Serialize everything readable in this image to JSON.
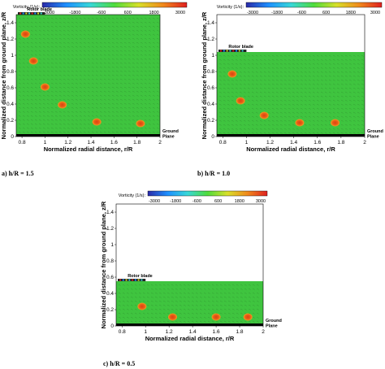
{
  "colorbar": {
    "title": "Vorticity (1/s):",
    "ticks": [
      "-3000",
      "-1800",
      "-600",
      "600",
      "1800",
      "3000"
    ],
    "colors": [
      "#2a2aa8",
      "#1e90ff",
      "#38d8d8",
      "#4fdc3c",
      "#d8e02a",
      "#f08a1c",
      "#e02020"
    ]
  },
  "colors": {
    "field": "#3fc43f",
    "vortex_core": "#e04010",
    "vortex_ring": "#f0a020",
    "ground": "#000000"
  },
  "annotations": {
    "rotor_blade": "Rotor blade",
    "ground_plane": "Ground\nPlane"
  },
  "chart_data": [
    {
      "type": "heatmap",
      "caption": "a) h/R = 1.5",
      "xlabel": "Normalized radial distance, r/R",
      "ylabel": "Normalized distance from ground plane, z/R",
      "xlim": [
        0.75,
        2.0
      ],
      "ylim": [
        0,
        1.5
      ],
      "xticks": [
        "0.8",
        "1",
        "1.2",
        "1.4",
        "1.6",
        "1.8",
        "2"
      ],
      "yticks": [
        "0",
        "0.2",
        "0.4",
        "0.6",
        "0.8",
        "1",
        "1.2",
        "1.4"
      ],
      "rotor_height": 1.5,
      "vortices": [
        {
          "x": 0.83,
          "y": 1.26
        },
        {
          "x": 0.9,
          "y": 0.93
        },
        {
          "x": 1.0,
          "y": 0.61
        },
        {
          "x": 1.15,
          "y": 0.39
        },
        {
          "x": 1.45,
          "y": 0.18
        },
        {
          "x": 1.83,
          "y": 0.16
        }
      ]
    },
    {
      "type": "heatmap",
      "caption": "b) h/R = 1.0",
      "xlabel": "Normalized radial distance, r/R",
      "ylabel": "Normalized distance from ground plane, z/R",
      "xlim": [
        0.75,
        2.0
      ],
      "ylim": [
        0,
        1.5
      ],
      "xticks": [
        "0.8",
        "1",
        "1.2",
        "1.4",
        "1.6",
        "1.8",
        "2"
      ],
      "yticks": [
        "0",
        "0.2",
        "0.4",
        "0.6",
        "0.8",
        "1",
        "1.2",
        "1.4"
      ],
      "rotor_height": 1.04,
      "vortices": [
        {
          "x": 0.88,
          "y": 0.77
        },
        {
          "x": 0.95,
          "y": 0.44
        },
        {
          "x": 1.15,
          "y": 0.26
        },
        {
          "x": 1.45,
          "y": 0.17
        },
        {
          "x": 1.75,
          "y": 0.17
        }
      ]
    },
    {
      "type": "heatmap",
      "caption": "c) h/R = 0.5",
      "xlabel": "Normalized radial distance, r/R",
      "ylabel": "Normalized distance from ground plane, z/R",
      "xlim": [
        0.75,
        2.0
      ],
      "ylim": [
        0,
        1.5
      ],
      "xticks": [
        "0.8",
        "1",
        "1.2",
        "1.4",
        "1.6",
        "1.8",
        "2"
      ],
      "yticks": [
        "0",
        "0.2",
        "0.4",
        "0.6",
        "0.8",
        "1",
        "1.2",
        "1.4"
      ],
      "rotor_height": 0.55,
      "vortices": [
        {
          "x": 0.97,
          "y": 0.24
        },
        {
          "x": 1.23,
          "y": 0.11
        },
        {
          "x": 1.6,
          "y": 0.11
        },
        {
          "x": 1.87,
          "y": 0.11
        }
      ]
    }
  ]
}
